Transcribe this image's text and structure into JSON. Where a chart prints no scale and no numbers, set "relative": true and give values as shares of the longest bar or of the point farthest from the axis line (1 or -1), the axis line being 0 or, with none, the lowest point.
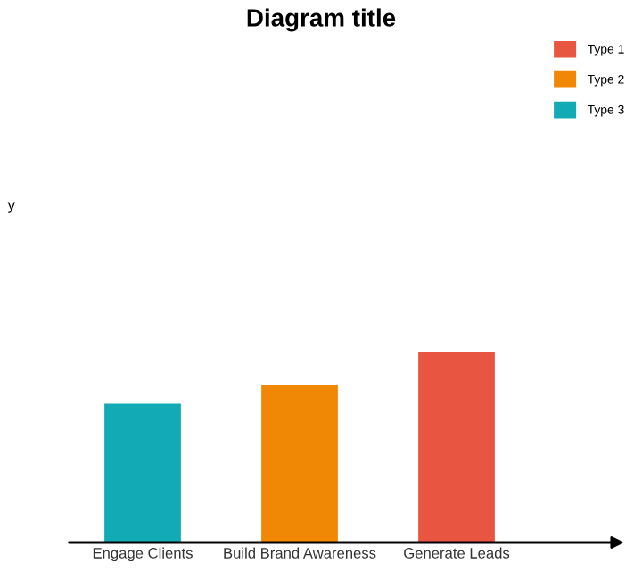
{
  "chart_data": {
    "type": "bar",
    "title": "Diagram title",
    "annotations": [
      "y"
    ],
    "relative": true,
    "categories": [
      "Engage Clients",
      "Build Brand Awareness",
      "Generate Leads"
    ],
    "series": [
      {
        "name": "Type 1",
        "color": "#e85642",
        "values": [
          null,
          null,
          1
        ]
      },
      {
        "name": "Type 2",
        "color": "#f08705",
        "values": [
          null,
          0.83,
          null
        ]
      },
      {
        "name": "Type 3",
        "color": "#12aab5",
        "values": [
          0.73,
          null,
          null
        ]
      }
    ],
    "legend": "top right",
    "grid": false
  }
}
